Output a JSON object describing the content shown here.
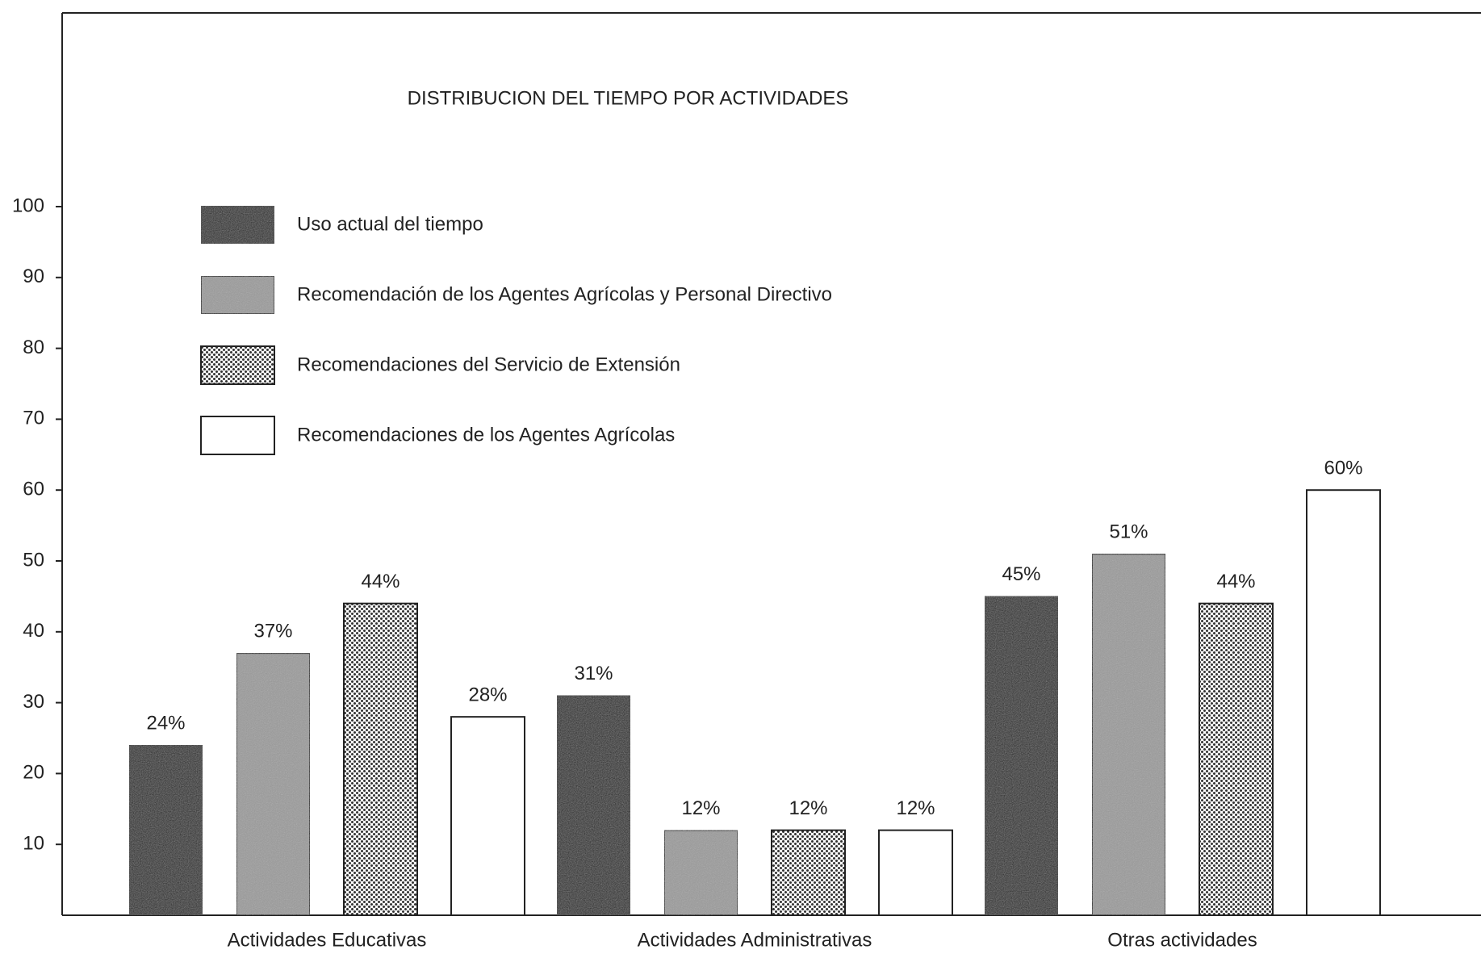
{
  "chart_data": {
    "type": "bar",
    "title": "DISTRIBUCION DEL TIEMPO POR ACTIVIDADES",
    "categories": [
      "Actividades Educativas",
      "Actividades Administrativas",
      "Otras actividades"
    ],
    "series": [
      {
        "name": "Uso actual del tiempo",
        "color": "#1c1c1c",
        "pattern": "grain",
        "values": [
          24,
          31,
          45
        ],
        "value_labels": [
          "24%",
          "31%",
          "45%"
        ]
      },
      {
        "name": "Recomendación de los Agentes Agrícolas y Personal Directivo",
        "color": "#9a9a9a",
        "pattern": "grain",
        "values": [
          37,
          12,
          51
        ],
        "value_labels": [
          "37%",
          "12%",
          "51%"
        ]
      },
      {
        "name": "Recomendaciones del Servicio de Extensión",
        "color": "#c4c4c4",
        "pattern": "dots",
        "values": [
          44,
          12,
          44
        ],
        "value_labels": [
          "44%",
          "12%",
          "44%"
        ]
      },
      {
        "name": "Recomendaciones de los Agentes Agrícolas",
        "color": "#ffffff",
        "pattern": "solid",
        "values": [
          28,
          12,
          60
        ],
        "value_labels": [
          "28%",
          "12%",
          "60%"
        ]
      }
    ],
    "ylim": [
      0,
      100
    ],
    "yticks": [
      10,
      20,
      30,
      40,
      50,
      60,
      70,
      80,
      90,
      100
    ],
    "grid": false
  }
}
